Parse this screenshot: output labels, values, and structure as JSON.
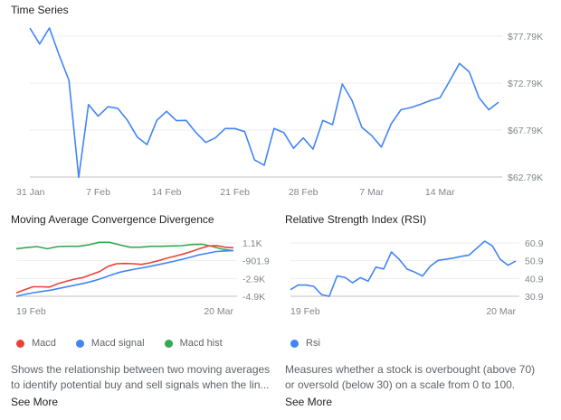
{
  "colors": {
    "line": "#4285f4",
    "macd": "#ea4335",
    "signal": "#4285f4",
    "hist": "#34a853",
    "grid": "#eeeeee"
  },
  "chart_data": [
    {
      "type": "line",
      "title": "Time Series",
      "yticks": [
        "$77.79K",
        "$72.79K",
        "$67.79K",
        "$62.79K"
      ],
      "ylim": [
        62.79,
        77.79
      ],
      "yunit": "$K",
      "grid": true,
      "xticks": [
        "31 Jan",
        "7 Feb",
        "14 Feb",
        "21 Feb",
        "28 Feb",
        "7 Mar",
        "14 Mar"
      ],
      "x": [
        "31 Jan",
        "1 Feb",
        "2 Feb",
        "3 Feb",
        "4 Feb",
        "5 Feb",
        "6 Feb",
        "7 Feb",
        "8 Feb",
        "9 Feb",
        "10 Feb",
        "11 Feb",
        "12 Feb",
        "13 Feb",
        "14 Feb",
        "15 Feb",
        "16 Feb",
        "17 Feb",
        "18 Feb",
        "19 Feb",
        "20 Feb",
        "21 Feb",
        "22 Feb",
        "23 Feb",
        "24 Feb",
        "25 Feb",
        "26 Feb",
        "27 Feb",
        "28 Feb",
        "1 Mar",
        "2 Mar",
        "3 Mar",
        "4 Mar",
        "5 Mar",
        "6 Mar",
        "7 Mar",
        "8 Mar",
        "9 Mar",
        "10 Mar",
        "11 Mar",
        "12 Mar",
        "13 Mar",
        "14 Mar",
        "15 Mar",
        "16 Mar",
        "17 Mar",
        "18 Mar",
        "19 Mar",
        "20 Mar"
      ],
      "values": [
        78.66,
        76.95,
        78.66,
        75.76,
        73.08,
        62.76,
        70.5,
        69.27,
        70.27,
        70.11,
        68.82,
        67.05,
        66.24,
        68.82,
        69.79,
        68.79,
        68.82,
        67.53,
        66.47,
        66.95,
        67.95,
        67.95,
        67.63,
        64.63,
        64.05,
        67.95,
        67.53,
        65.85,
        66.95,
        65.76,
        68.82,
        68.37,
        72.69,
        70.92,
        68.08,
        67.21,
        65.98,
        68.44,
        69.95,
        70.18,
        70.53,
        70.92,
        71.24,
        73.02,
        74.89,
        73.98,
        71.24,
        69.95,
        70.76
      ]
    },
    {
      "type": "line",
      "title": "Moving Average Convergence Divergence",
      "yticks": [
        "1.1K",
        "-901.9",
        "-2.9K",
        "-4.9K"
      ],
      "ylim": [
        -4900,
        1100
      ],
      "grid": true,
      "xticks": [
        "19 Feb",
        "20 Mar"
      ],
      "series": [
        {
          "name": "Macd",
          "values": [
            -4520,
            -4170,
            -3830,
            -3830,
            -3860,
            -3480,
            -3210,
            -2970,
            -2790,
            -2450,
            -2100,
            -1520,
            -1240,
            -1210,
            -1240,
            -1310,
            -1140,
            -900,
            -620,
            -380,
            -140,
            140,
            480,
            760,
            800,
            620,
            560
          ]
        },
        {
          "name": "Macd signal",
          "values": [
            -4900,
            -4690,
            -4490,
            -4350,
            -4210,
            -4010,
            -3800,
            -3600,
            -3390,
            -3140,
            -2830,
            -2480,
            -2170,
            -1970,
            -1790,
            -1620,
            -1410,
            -1210,
            -1000,
            -760,
            -520,
            -240,
            -70,
            130,
            200,
            240
          ]
        },
        {
          "name": "Macd hist",
          "values": [
            445,
            580,
            690,
            445,
            690,
            720,
            720,
            890,
            1170,
            1170,
            890,
            620,
            620,
            720,
            720,
            760,
            790,
            930,
            960,
            690,
            380,
            240
          ]
        }
      ],
      "legend": "bottom-left",
      "description": "Shows the relationship between two moving averages to identify potential buy and sell signals when the lin...",
      "see_more": "See More"
    },
    {
      "type": "line",
      "title": "Relative Strength Index (RSI)",
      "yticks": [
        "60.9",
        "50.9",
        "40.9",
        "30.9"
      ],
      "ylim": [
        30.9,
        60.9
      ],
      "grid": true,
      "xticks": [
        "19 Feb",
        "20 Mar"
      ],
      "series": [
        {
          "name": "Rsi",
          "values": [
            34.6,
            37.2,
            37.2,
            36.5,
            31.8,
            30.9,
            42.3,
            41.6,
            38.5,
            41.4,
            39.4,
            47.3,
            46.2,
            55.8,
            51.7,
            46.2,
            44.5,
            42.3,
            47.9,
            51.1,
            51.7,
            52.4,
            53.4,
            54.1,
            58.0,
            61.9,
            59.2,
            51.7,
            48.4,
            50.7
          ]
        }
      ],
      "legend": "bottom-left",
      "description": "Measures whether a stock is overbought (above 70) or oversold (below 30) on a scale from 0 to 100.",
      "see_more": "See More"
    }
  ]
}
